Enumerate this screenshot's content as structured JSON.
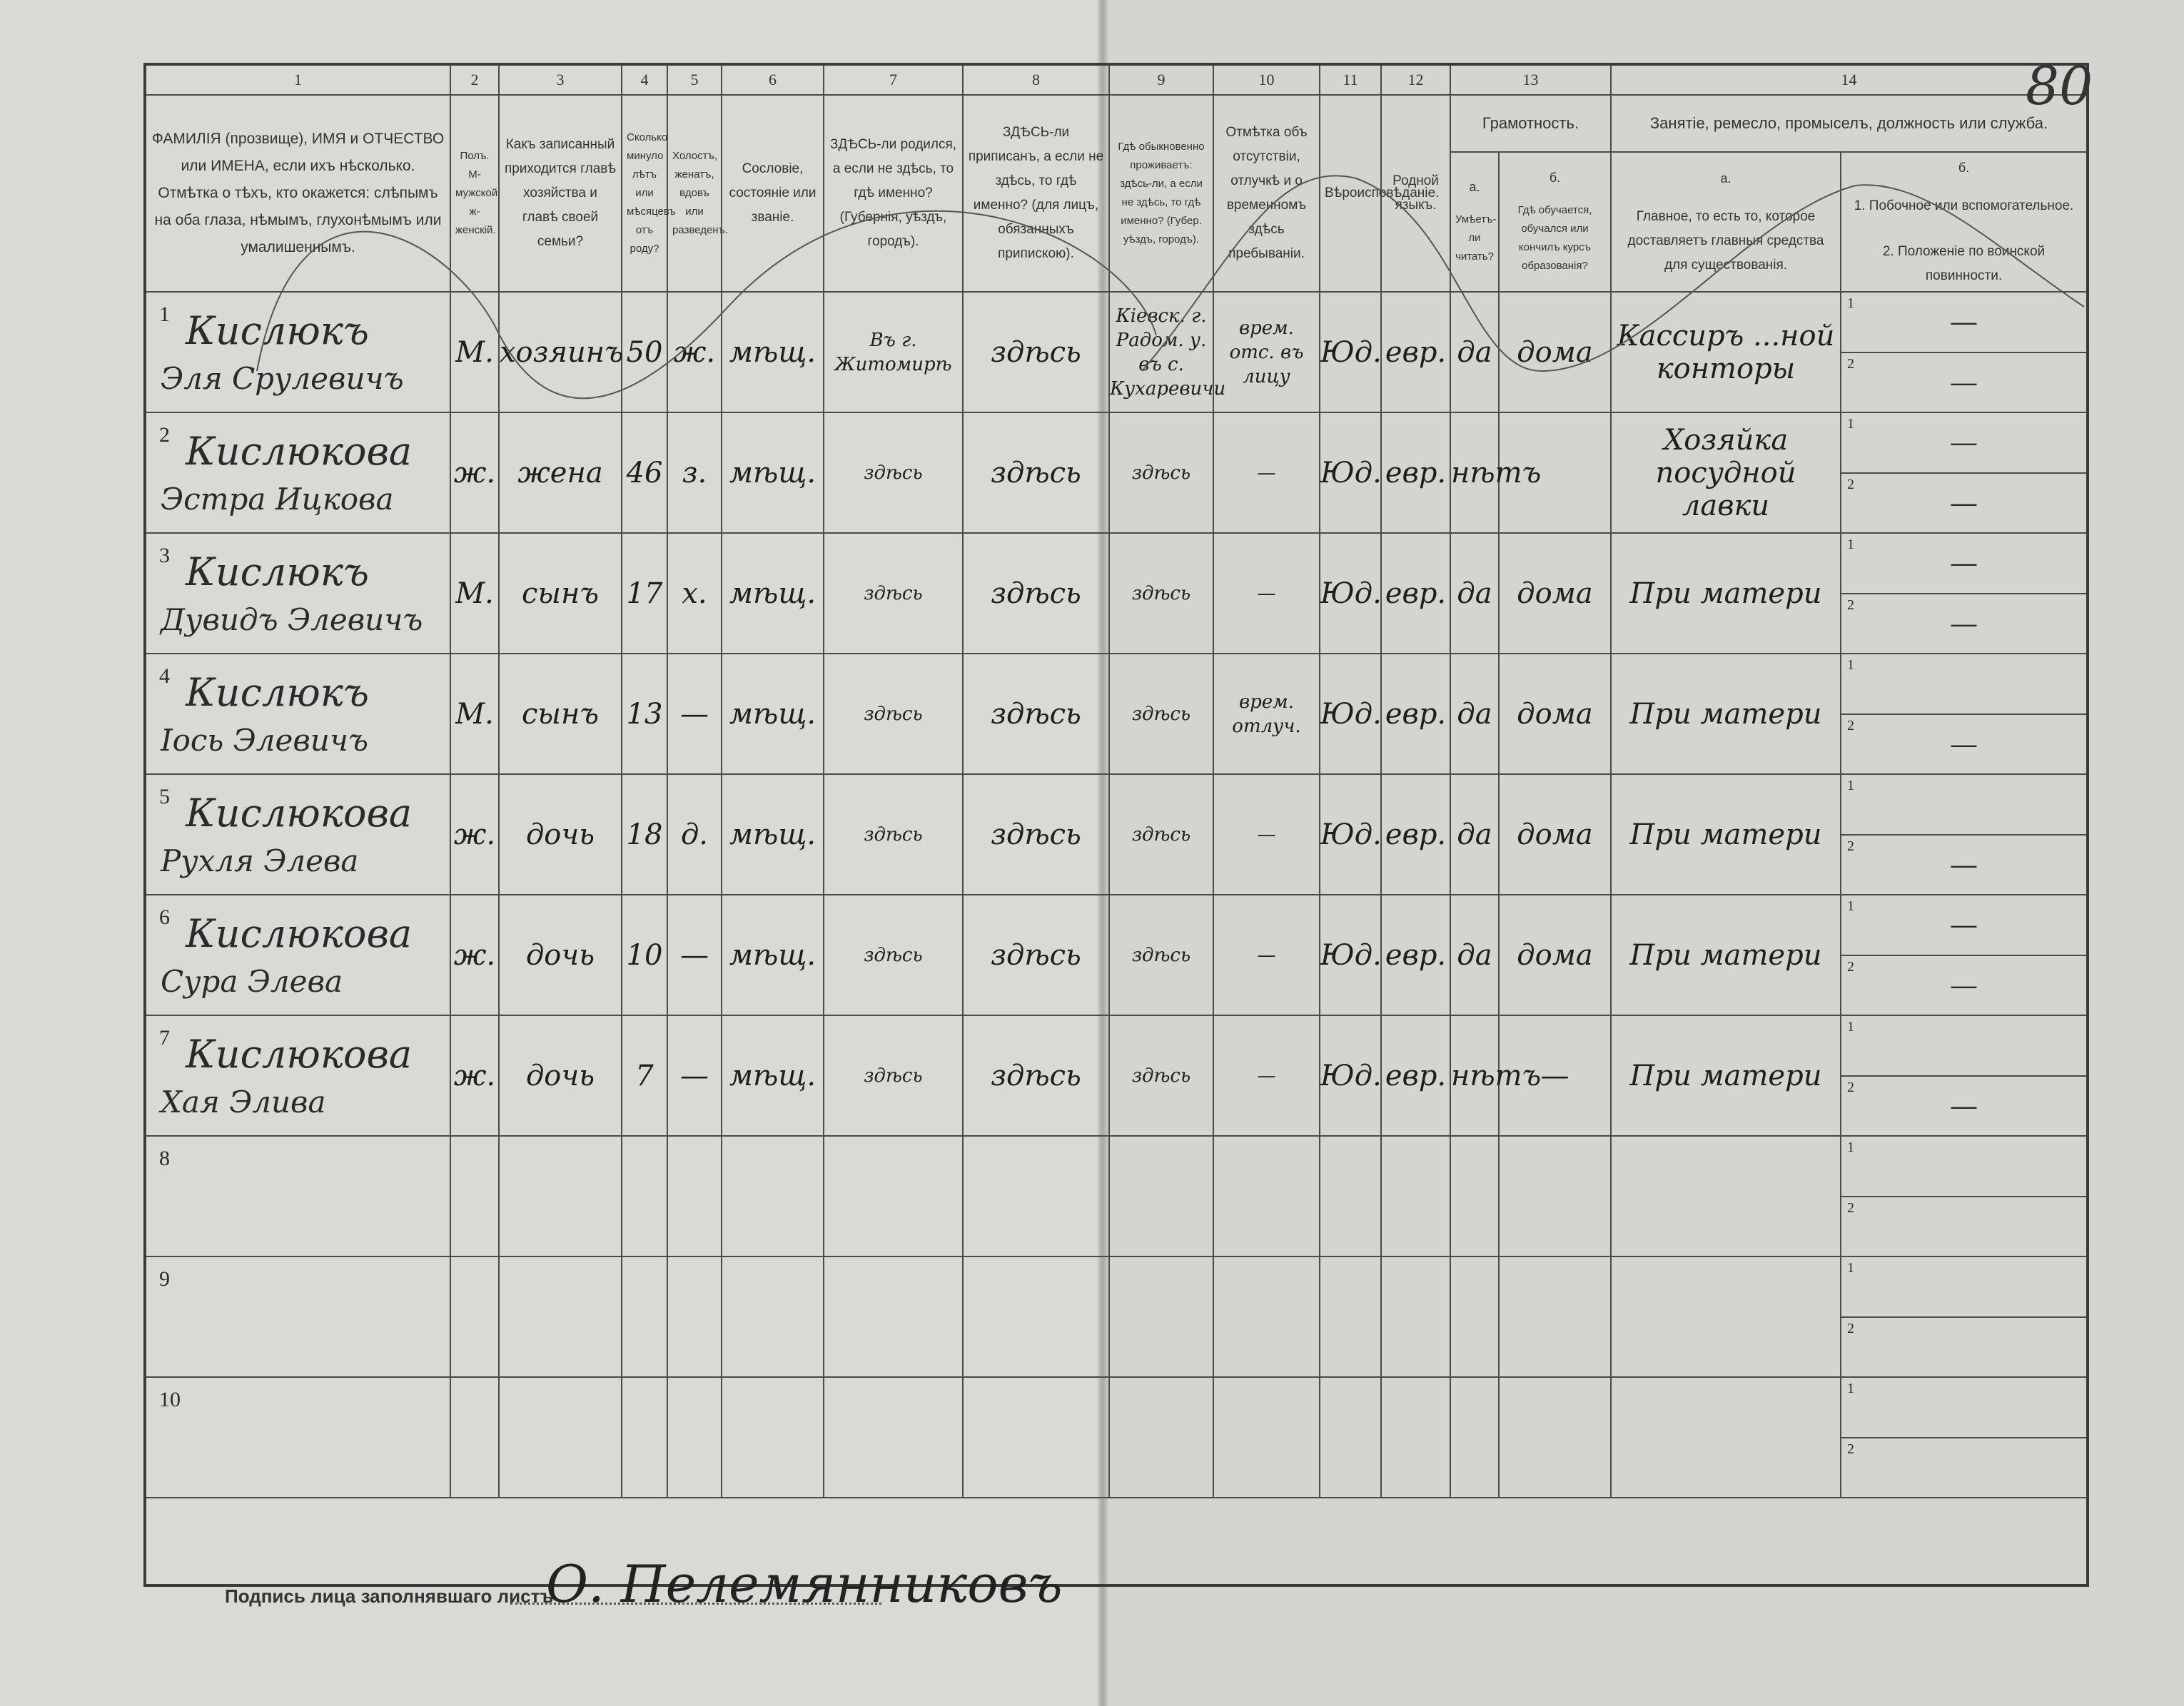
{
  "page_number": "80",
  "header": {
    "col_numbers": [
      "1",
      "2",
      "3",
      "4",
      "5",
      "6",
      "7",
      "8",
      "9",
      "10",
      "11",
      "12",
      "13",
      "14"
    ],
    "col1": "ФАМИЛІЯ (прозвище), ИМЯ и ОТЧЕСТВО или ИМЕНА, если ихъ нѣсколько. Отмѣтка о тѣхъ, кто окажется: слѣпымъ на оба глаза, нѣмымъ, глухонѣмымъ или умалишеннымъ.",
    "col2": "Полъ. М-мужской. ж-женскій.",
    "col3": "Какъ записанный приходится главѣ хозяйства и главѣ своей семьи?",
    "col4": "Сколько минуло лѣтъ или мѣсяцевъ отъ роду?",
    "col5": "Холостъ, женатъ, вдовъ или разведенъ.",
    "col6": "Сословіе, состояніе или званіе.",
    "col7": "ЗДѢСЬ-ли родился, а если не здѣсь, то гдѣ именно? (Губернія, уѣздъ, городъ).",
    "col8": "ЗДѢСЬ-ли приписанъ, а если не здѣсь, то гдѣ именно? (для лицъ, обязанныхъ припискою).",
    "col9": "Гдѣ обыкновенно проживаетъ: здѣсь-ли, а если не здѣсь, то гдѣ именно? (Губер. уѣздъ, городъ).",
    "col10": "Отмѣтка объ отсутствіи, отлучкѣ и о временномъ здѣсь пребываніи.",
    "col11": "Вѣроисповѣданіе.",
    "col12": "Родной языкъ.",
    "col13": "Грамотность.",
    "col13a_letter": "а.",
    "col13a": "Умѣетъ-ли читать?",
    "col13b_letter": "б.",
    "col13b": "Гдѣ обучается, обучался или кончилъ курсъ образованія?",
    "col14": "Занятіе, ремесло, промыселъ, должность или служба.",
    "col14a_letter": "а.",
    "col14a": "Главное, то есть то, которое доставляетъ главныя средства для существованія.",
    "col14b_letter": "б.",
    "col14b_1": "1. Побочное или вспомогательное.",
    "col14b_2": "2. Положеніе по воинской повинности."
  },
  "rows": [
    {
      "num": "1",
      "surname": "Кислюкъ",
      "given": "Эля Срулевичъ",
      "sex": "М.",
      "relation": "хозяинъ",
      "age": "50",
      "marital": "ж.",
      "estate": "мѣщ.",
      "born": "Въ г. Житомирѣ",
      "registered": "здѣсь",
      "resides": "Кіевск. г. Радом. у. въ с. Кухаревичи",
      "absence": "врем. отс. въ лицу",
      "religion": "Юд.",
      "language": "евр.",
      "literate": "да",
      "education": "дома",
      "occupation": "Кассиръ ...ной конторы",
      "secondary": "—",
      "military": "—"
    },
    {
      "num": "2",
      "surname": "Кислюкова",
      "given": "Эстра Ицкова",
      "sex": "ж.",
      "relation": "жена",
      "age": "46",
      "marital": "з.",
      "estate": "мѣщ.",
      "born": "здѣсь",
      "registered": "здѣсь",
      "resides": "здѣсь",
      "absence": "—",
      "religion": "Юд.",
      "language": "евр.",
      "literate": "нѣтъ",
      "education": "",
      "occupation": "Хозяйка посудной лавки",
      "secondary": "—",
      "military": "—"
    },
    {
      "num": "3",
      "surname": "Кислюкъ",
      "given": "Дувидъ Элевичъ",
      "sex": "М.",
      "relation": "сынъ",
      "age": "17",
      "marital": "х.",
      "estate": "мѣщ.",
      "born": "здѣсь",
      "registered": "здѣсь",
      "resides": "здѣсь",
      "absence": "—",
      "religion": "Юд.",
      "language": "евр.",
      "literate": "да",
      "education": "дома",
      "occupation": "При матери",
      "secondary": "—",
      "military": "—"
    },
    {
      "num": "4",
      "surname": "Кислюкъ",
      "given": "Іось Элевичъ",
      "sex": "М.",
      "relation": "сынъ",
      "age": "13",
      "marital": "—",
      "estate": "мѣщ.",
      "born": "здѣсь",
      "registered": "здѣсь",
      "resides": "здѣсь",
      "absence": "врем. отлуч.",
      "religion": "Юд.",
      "language": "евр.",
      "literate": "да",
      "education": "дома",
      "occupation": "При матери",
      "secondary": "",
      "military": "—"
    },
    {
      "num": "5",
      "surname": "Кислюкова",
      "given": "Рухля Элева",
      "sex": "ж.",
      "relation": "дочь",
      "age": "18",
      "marital": "д.",
      "estate": "мѣщ.",
      "born": "здѣсь",
      "registered": "здѣсь",
      "resides": "здѣсь",
      "absence": "—",
      "religion": "Юд.",
      "language": "евр.",
      "literate": "да",
      "education": "дома",
      "occupation": "При матери",
      "secondary": "",
      "military": "—"
    },
    {
      "num": "6",
      "surname": "Кислюкова",
      "given": "Сура Элева",
      "sex": "ж.",
      "relation": "дочь",
      "age": "10",
      "marital": "—",
      "estate": "мѣщ.",
      "born": "здѣсь",
      "registered": "здѣсь",
      "resides": "здѣсь",
      "absence": "—",
      "religion": "Юд.",
      "language": "евр.",
      "literate": "да",
      "education": "дома",
      "occupation": "При матери",
      "secondary": "—",
      "military": "—"
    },
    {
      "num": "7",
      "surname": "Кислюкова",
      "given": "Хая Элива",
      "sex": "ж.",
      "relation": "дочь",
      "age": "7",
      "marital": "—",
      "estate": "мѣщ.",
      "born": "здѣсь",
      "registered": "здѣсь",
      "resides": "здѣсь",
      "absence": "—",
      "religion": "Юд.",
      "language": "евр.",
      "literate": "нѣтъ",
      "education": "—",
      "occupation": "При матери",
      "secondary": "",
      "military": "—"
    },
    {
      "num": "8"
    },
    {
      "num": "9"
    },
    {
      "num": "10"
    }
  ],
  "subrow_labels": [
    "1",
    "2"
  ],
  "footer": {
    "signature_label": "Подпись лица заполнявшаго листъ",
    "signature": "О. Пелемянниковъ"
  }
}
